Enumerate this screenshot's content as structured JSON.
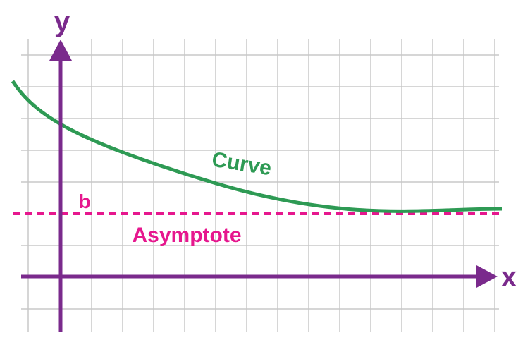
{
  "labels": {
    "y_axis": "y",
    "x_axis": "x",
    "asymptote_value": "b",
    "curve": "Curve",
    "asymptote": "Asymptote"
  }
}
